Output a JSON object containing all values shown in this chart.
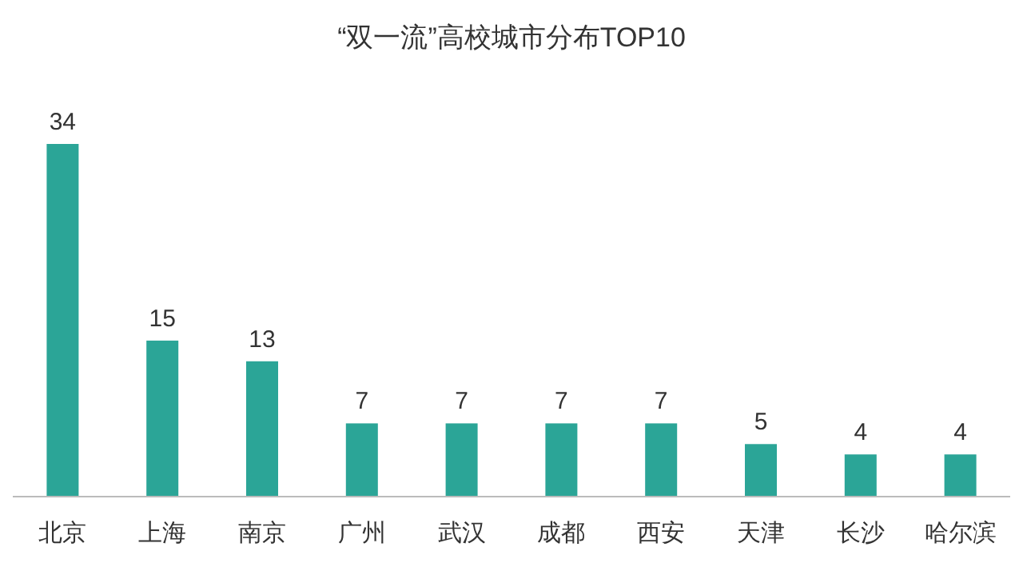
{
  "chart_data": {
    "type": "bar",
    "title": "“双一流”高校城市分布TOP10",
    "categories": [
      "北京",
      "上海",
      "南京",
      "广州",
      "武汉",
      "成都",
      "西安",
      "天津",
      "长沙",
      "哈尔滨"
    ],
    "values": [
      34,
      15,
      13,
      7,
      7,
      7,
      7,
      5,
      4,
      4
    ],
    "color": "#2ba597",
    "data_labels": true
  }
}
